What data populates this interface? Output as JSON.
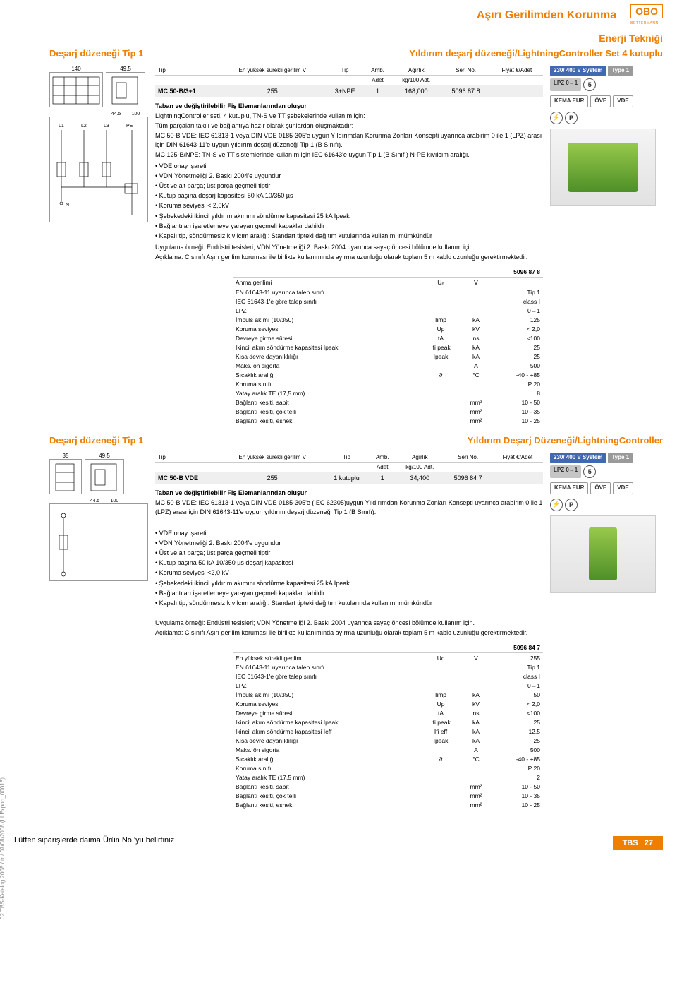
{
  "header": {
    "title": "Aşırı Gerilimden Korunma",
    "logo": "OBO",
    "logo_sub": "BETTERMANN",
    "subtitle": "Enerji Tekniği"
  },
  "section1": {
    "title_left": "Deşarj düzeneği Tip 1",
    "title_right": "Yıldırım deşarj düzeneği/LightningController Set 4 kutuplu",
    "dims": {
      "w": "140",
      "h": "49.5",
      "d": "44.5",
      "d2": "100"
    },
    "circuit_labels": [
      "L1",
      "L2",
      "L3",
      "PE",
      "N"
    ],
    "table": {
      "headers": [
        "Tip",
        "En yüksek sürekli gerilim V",
        "Tip",
        "Amb.",
        "Ağırlık",
        "Seri No.",
        "Fiyat €/Adet"
      ],
      "sub": [
        "",
        "",
        "",
        "Adet",
        "kg/100 Adt.",
        "",
        ""
      ],
      "row": [
        "MC 50-B/3+1",
        "255",
        "3+NPE",
        "1",
        "168,000",
        "5096 87 8",
        ""
      ]
    },
    "badges": {
      "system": "230/ 400 V System",
      "type": "Type 1",
      "lpz": "LPZ 0→1",
      "circle": "5",
      "cert": [
        "KEMA EUR",
        "ÖVE",
        "VDE"
      ]
    },
    "intro": "Taban ve değiştirilebilir Fiş Elemanlarından oluşur",
    "desc1": "LightningController seti, 4 kutuplu, TN-S ve TT şebekelerinde kullanım için:",
    "desc2": "Tüm parçaları takılı ve bağlantıya hazır olarak şunlardan oluşmaktadır:",
    "desc3": "MC 50-B VDE: IEC 61313-1 veya DIN VDE 0185-305'e uygun Yıldırımdan Korunma Zonları Konsepti uyarınca arabirim 0 ile 1 (LPZ) arası için DIN 61643-11'e uygun yıldırım deşarj düzeneği Tip 1 (B Sınıfı).",
    "desc4": "MC 125-B/NPE: TN-S ve TT sistemlerinde kullanım için IEC 61643'e uygun Tip 1 (B Sınıfı) N-PE kıvılcım aralığı.",
    "bullets": [
      "VDE onay işareti",
      "VDN Yönetmeliği 2. Baskı 2004'e uygundur",
      "Üst ve alt parça; üst parça geçmeli tiptir",
      "Kutup başına deşarj kapasitesi 50 kA 10/350 µs",
      "Koruma seviyesi < 2,0kV",
      "Şebekedeki ikincil yıldırım akımını söndürme kapasitesi 25 kA Ipeak",
      "Bağlantıları işaretlemeye yarayan geçmeli kapaklar dahildir",
      "Kapalı tip, söndürmesiz kıvılcım aralığı: Standart tipteki dağıtım kutularında kullanımı mümkündür"
    ],
    "example": "Uygulama örneği: Endüstri tesisleri; VDN Yönetmeliği 2. Baskı 2004 uyarınca sayaç öncesi bölümde kullanım için.",
    "note": "Açıklama: C sınıfı Aşırı gerilim koruması ile birlikte kullanımında ayırma uzunluğu olarak toplam 5 m kablo uzunluğu gerektirmektedir.",
    "spec_header": "5096 87 8",
    "specs": [
      [
        "Anma gerilimi",
        "Uₙ",
        "V",
        ""
      ],
      [
        "EN 61643-11 uyarınca talep sınıfı",
        "",
        "",
        "Tip 1"
      ],
      [
        "IEC 61643-1'e göre talep sınıfı",
        "",
        "",
        "class I"
      ],
      [
        "LPZ",
        "",
        "",
        "0→1"
      ],
      [
        "İmpuls akımı (10/350)",
        "Iimp",
        "kA",
        "125"
      ],
      [
        "Koruma seviyesi",
        "Up",
        "kV",
        "< 2,0"
      ],
      [
        "Devreye girme süresi",
        "tA",
        "ns",
        "<100"
      ],
      [
        "İkincil akım söndürme kapasitesi Ipeak",
        "Ifi peak",
        "kA",
        "25"
      ],
      [
        "Kısa devre dayanıklılığı",
        "Ipeak",
        "kA",
        "25"
      ],
      [
        "Maks. ön sigorta",
        "",
        "A",
        "500"
      ],
      [
        "Sıcaklık aralığı",
        "ϑ",
        "°C",
        "-40 - +85"
      ],
      [
        "Koruma sınıfı",
        "",
        "",
        "IP 20"
      ],
      [
        "Yatay aralık TE (17,5 mm)",
        "",
        "",
        "8"
      ],
      [
        "Bağlantı kesiti, sabit",
        "",
        "mm²",
        "10 - 50"
      ],
      [
        "Bağlantı kesiti, çok telli",
        "",
        "mm²",
        "10 - 35"
      ],
      [
        "Bağlantı kesiti, esnek",
        "",
        "mm²",
        "10 - 25"
      ]
    ]
  },
  "section2": {
    "title_left": "Deşarj düzeneği Tip 1",
    "title_right": "Yıldırım Deşarj Düzeneği/LightningController",
    "dims": {
      "w": "35",
      "h": "49.5",
      "d": "44.5",
      "d2": "100"
    },
    "table": {
      "headers": [
        "Tip",
        "En yüksek sürekli gerilim V",
        "Tip",
        "Amb.",
        "Ağırlık",
        "Seri No.",
        "Fiyat €/Adet"
      ],
      "sub": [
        "",
        "",
        "",
        "Adet",
        "kg/100 Adt.",
        "",
        ""
      ],
      "row": [
        "MC 50-B VDE",
        "255",
        "1 kutuplu",
        "1",
        "34,400",
        "5096 84 7",
        ""
      ]
    },
    "intro": "Taban ve değiştirilebilir Fiş Elemanlarından oluşur",
    "desc": "MC 50-B VDE: IEC 61313-1 veya DIN VDE 0185-305'e (IEC 62305)uygun Yıldırımdan Korunma Zonları Konsepti uyarınca arabirim 0 ile 1 (LPZ) arası için DIN 61643-11'e uygun yıldırım deşarj düzeneği Tip 1 (B Sınıfı).",
    "bullets": [
      "VDE onay işareti",
      "VDN Yönetmeliği 2. Baskı 2004'e uygundur",
      "Üst ve alt parça; üst parça geçmeli tiptir",
      "Kutup başına 50 kA 10/350 µs deşarj kapasitesi",
      "Koruma seviyesi <2,0 kV",
      "Şebekedeki ikincil yıldırım akımını söndürme kapasitesi 25 kA Ipeak",
      "Bağlantıları işaretlemeye yarayan geçmeli kapaklar dahildir",
      "Kapalı tip, söndürmesiz kıvılcım aralığı: Standart tipteki dağıtım kutularında kullanımı mümkündür"
    ],
    "example": "Uygulama örneği: Endüstri tesisleri; VDN Yönetmeliği 2. Baskı 2004 uyarınca sayaç öncesi bölümde kullanım için.",
    "note": "Açıklama: C sınıfı Aşırı gerilim koruması ile birlikte kullanımında ayırma uzunluğu olarak toplam 5 m kablo uzunluğu gerektirmektedir.",
    "spec_header": "5096 84 7",
    "specs": [
      [
        "En yüksek sürekli gerilim",
        "Uc",
        "V",
        "255"
      ],
      [
        "EN 61643-11 uyarınca talep sınıfı",
        "",
        "",
        "Tip 1"
      ],
      [
        "IEC 61643-1'e göre talep sınıfı",
        "",
        "",
        "class I"
      ],
      [
        "LPZ",
        "",
        "",
        "0→1"
      ],
      [
        "İmpuls akımı (10/350)",
        "Iimp",
        "kA",
        "50"
      ],
      [
        "Koruma seviyesi",
        "Up",
        "kV",
        "< 2,0"
      ],
      [
        "Devreye girme süresi",
        "tA",
        "ns",
        "<100"
      ],
      [
        "İkincil akım söndürme kapasitesi Ipeak",
        "Ifi peak",
        "kA",
        "25"
      ],
      [
        "İkincil akım söndürme kapasitesi Ieff",
        "Ifi eff",
        "kA",
        "12,5"
      ],
      [
        "Kısa devre dayanıklılığı",
        "Ipeak",
        "kA",
        "25"
      ],
      [
        "Maks. ön sigorta",
        "",
        "A",
        "500"
      ],
      [
        "Sıcaklık aralığı",
        "ϑ",
        "°C",
        "-40 - +85"
      ],
      [
        "Koruma sınıfı",
        "",
        "",
        "IP 20"
      ],
      [
        "Yatay aralık TE (17,5 mm)",
        "",
        "",
        "2"
      ],
      [
        "Bağlantı kesiti, sabit",
        "",
        "mm²",
        "10 - 50"
      ],
      [
        "Bağlantı kesiti, çok telli",
        "",
        "mm²",
        "10 - 35"
      ],
      [
        "Bağlantı kesiti, esnek",
        "",
        "mm²",
        "10 - 25"
      ]
    ]
  },
  "footer": {
    "left": "Lütfen siparişlerde daima Ürün No.'yu belirtiniz",
    "right_label": "TBS",
    "right_page": "27",
    "vertical": "02 TBS-Katalog 2008 / tr / 07/08/2008 (LLExport_00016)"
  }
}
